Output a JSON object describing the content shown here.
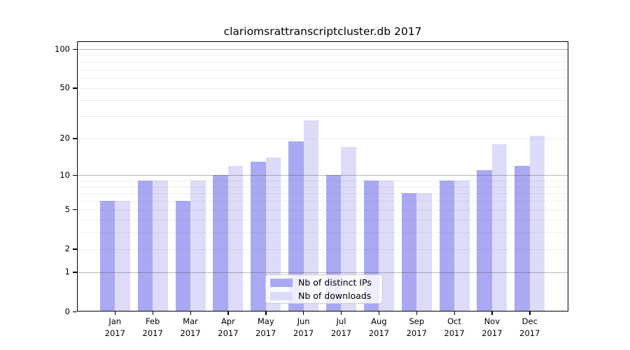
{
  "chart_data": {
    "type": "bar",
    "title": "clariomsrattranscriptcluster.db 2017",
    "categories": [
      "Jan",
      "Feb",
      "Mar",
      "Apr",
      "May",
      "Jun",
      "Jul",
      "Aug",
      "Sep",
      "Oct",
      "Nov",
      "Dec"
    ],
    "year_label": "2017",
    "series": [
      {
        "name": "Nb of distinct IPs",
        "color": "#a9a9f3",
        "values": [
          6,
          9,
          6,
          10,
          13,
          19,
          10,
          9,
          7,
          9,
          11,
          12
        ]
      },
      {
        "name": "Nb of downloads",
        "color": "#dcdcf8",
        "values": [
          6,
          9,
          9,
          12,
          14,
          28,
          17,
          9,
          7,
          9,
          18,
          21
        ]
      }
    ],
    "yscale": "log1p",
    "ylim": [
      0,
      115
    ],
    "yticks": [
      0,
      1,
      2,
      5,
      10,
      20,
      50,
      100
    ],
    "major_gridlines": [
      1,
      10,
      100
    ],
    "minor_gridlines": [
      2,
      3,
      4,
      5,
      6,
      7,
      8,
      9,
      20,
      30,
      40,
      50,
      60,
      70,
      80,
      90
    ],
    "grid": true,
    "legend_position": "lower center",
    "xlabel": "",
    "ylabel": ""
  }
}
